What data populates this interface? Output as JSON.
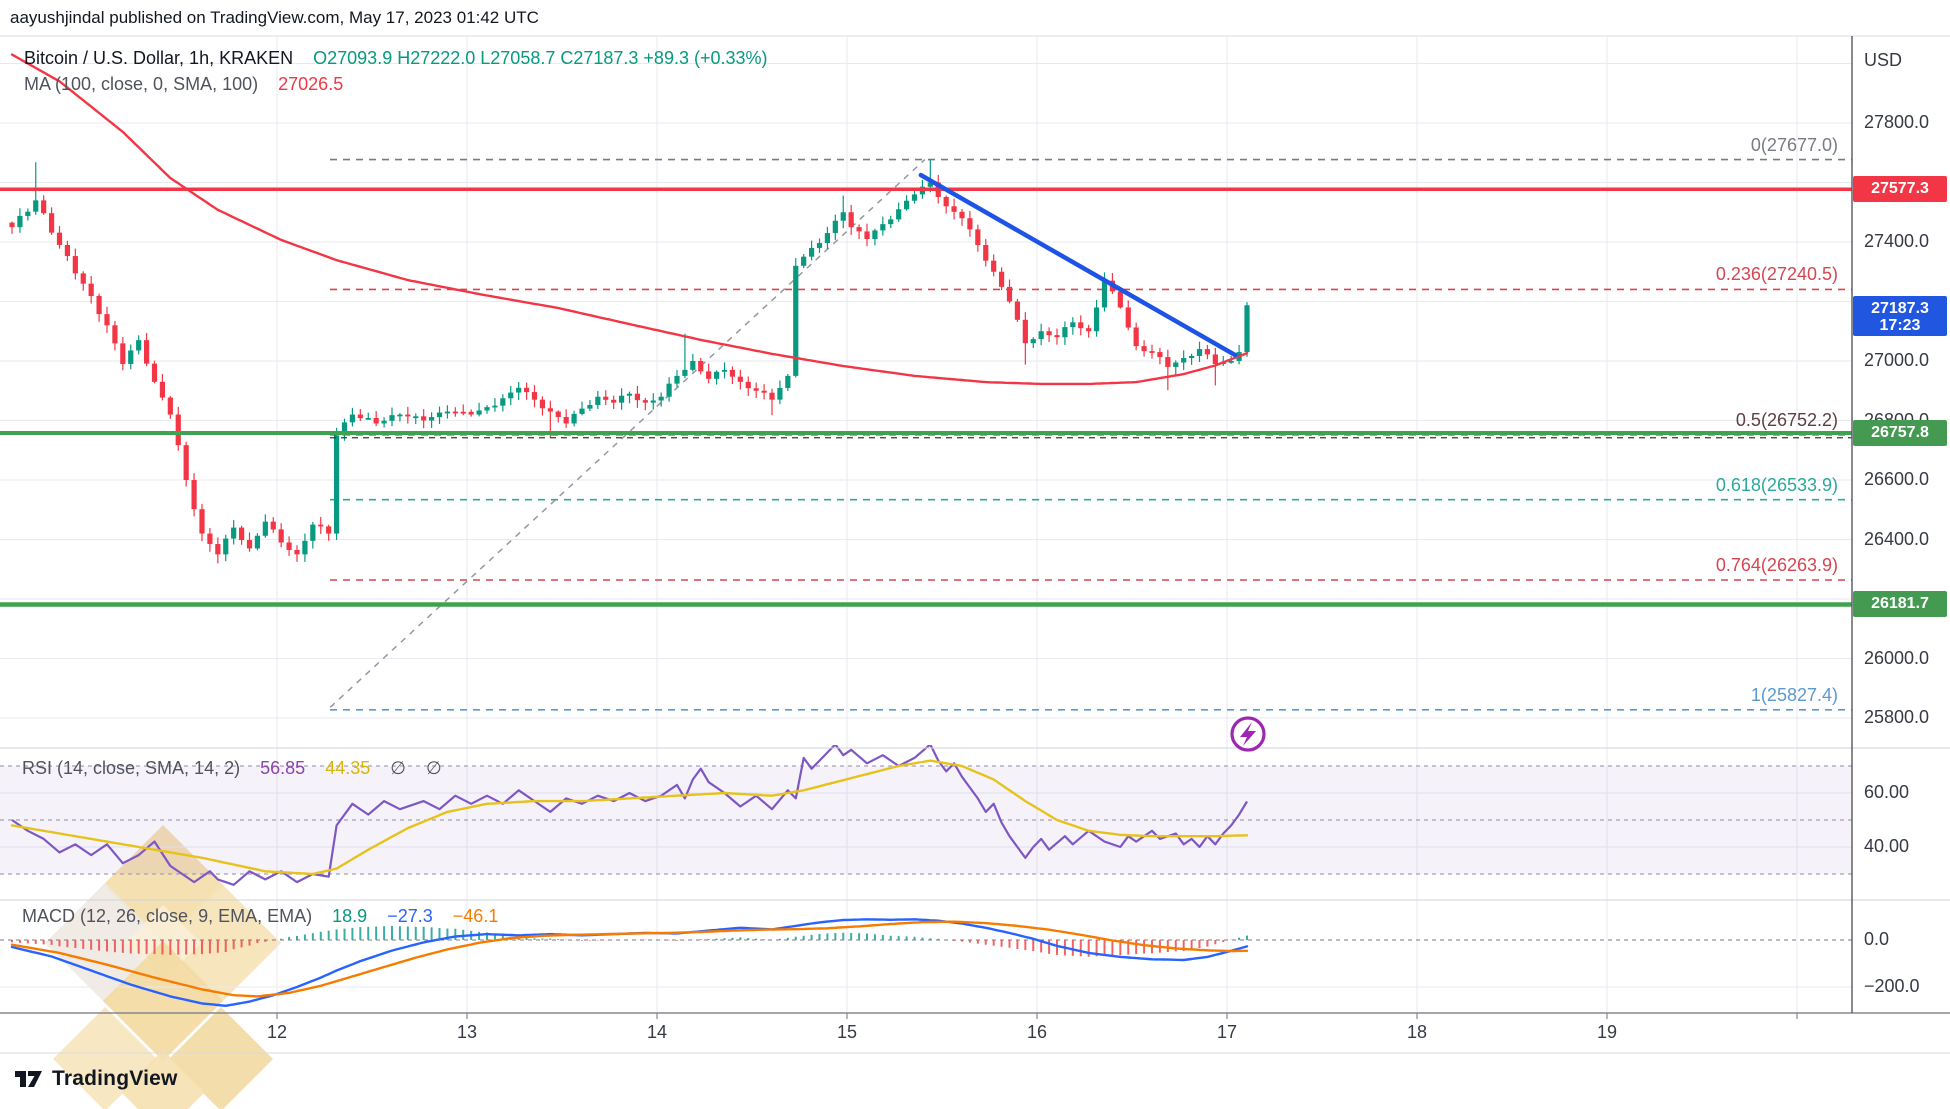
{
  "header": {
    "text": "aayushjindal published on TradingView.com, May 17, 2023 01:42 UTC"
  },
  "footer": {
    "brand": "TradingView"
  },
  "legend": {
    "symbol": "Bitcoin / U.S. Dollar, 1h, KRAKEN",
    "ohlc": "O27093.9  H27222.0  L27058.7  C27187.3  +89.3 (+0.33%)",
    "ma_label": "MA (100, close, 0, SMA, 100)",
    "ma_value": "27026.5"
  },
  "rsi_legend": {
    "label": "RSI (14, close, SMA, 14, 2)",
    "rsi_value": "56.85",
    "sma_value": "44.35",
    "empty1": "∅",
    "empty2": "∅"
  },
  "macd_legend": {
    "label": "MACD (12, 26, close, 9, EMA, EMA)",
    "hist_value": "18.9",
    "macd_value": "−27.3",
    "signal_value": "−46.1"
  },
  "price_axis": {
    "currency": "USD",
    "ticks": [
      27800,
      27400,
      27000,
      26800,
      26600,
      26400,
      26000,
      25800
    ]
  },
  "chart_data": {
    "type": "candlestick",
    "title": "Bitcoin / U.S. Dollar",
    "interval": "1h",
    "exchange": "KRAKEN",
    "ohlc": {
      "open": 27093.9,
      "high": 27222.0,
      "low": 27058.7,
      "close": 27187.3,
      "change": 89.3,
      "change_pct": 0.33
    },
    "x_axis": {
      "day_labels": [
        "12",
        "13",
        "14",
        "15",
        "16",
        "17",
        "18",
        "19"
      ]
    },
    "y_axis": {
      "ticks": [
        27800,
        27400,
        27000,
        26800,
        26600,
        26400,
        26000,
        25800
      ],
      "min": 25700,
      "max": 28100
    },
    "candles": {
      "up_color": "#089981",
      "down_color": "#f23645",
      "last_close": 27187.3,
      "countdown": "17:23",
      "anchors": [
        [
          0,
          27450
        ],
        [
          3,
          27540
        ],
        [
          6,
          27390
        ],
        [
          9,
          27260
        ],
        [
          12,
          27120
        ],
        [
          14,
          26990
        ],
        [
          16,
          27070
        ],
        [
          18,
          26930
        ],
        [
          20,
          26820
        ],
        [
          22,
          26600
        ],
        [
          24,
          26420
        ],
        [
          26,
          26350
        ],
        [
          28,
          26440
        ],
        [
          30,
          26370
        ],
        [
          32,
          26460
        ],
        [
          34,
          26390
        ],
        [
          36,
          26350
        ],
        [
          38,
          26450
        ],
        [
          40,
          26420
        ],
        [
          41,
          26750
        ],
        [
          43,
          26820
        ],
        [
          46,
          26790
        ],
        [
          49,
          26820
        ],
        [
          52,
          26800
        ],
        [
          55,
          26830
        ],
        [
          58,
          26820
        ],
        [
          61,
          26850
        ],
        [
          64,
          26910
        ],
        [
          66,
          26870
        ],
        [
          68,
          26830
        ],
        [
          70,
          26790
        ],
        [
          72,
          26840
        ],
        [
          74,
          26880
        ],
        [
          76,
          26860
        ],
        [
          78,
          26890
        ],
        [
          80,
          26860
        ],
        [
          82,
          26880
        ],
        [
          84,
          26950
        ],
        [
          86,
          27000
        ],
        [
          88,
          26940
        ],
        [
          90,
          26970
        ],
        [
          92,
          26930
        ],
        [
          94,
          26900
        ],
        [
          96,
          26870
        ],
        [
          98,
          26950
        ],
        [
          99,
          27320
        ],
        [
          101,
          27380
        ],
        [
          103,
          27430
        ],
        [
          105,
          27500
        ],
        [
          106,
          27450
        ],
        [
          108,
          27410
        ],
        [
          110,
          27460
        ],
        [
          112,
          27510
        ],
        [
          114,
          27560
        ],
        [
          116,
          27600
        ],
        [
          118,
          27520
        ],
        [
          120,
          27480
        ],
        [
          122,
          27390
        ],
        [
          124,
          27300
        ],
        [
          126,
          27200
        ],
        [
          128,
          27060
        ],
        [
          130,
          27100
        ],
        [
          132,
          27080
        ],
        [
          134,
          27130
        ],
        [
          136,
          27100
        ],
        [
          138,
          27270
        ],
        [
          140,
          27180
        ],
        [
          142,
          27050
        ],
        [
          144,
          27030
        ],
        [
          146,
          26980
        ],
        [
          148,
          27010
        ],
        [
          150,
          27040
        ],
        [
          152,
          26990
        ],
        [
          154,
          27000
        ],
        [
          155,
          27030
        ],
        [
          156,
          27187.3
        ]
      ],
      "wick_high": {
        "3": 27668,
        "85": 27092,
        "105": 27556,
        "116": 27677,
        "138": 27298
      },
      "wick_low": {
        "26": 26320,
        "36": 26325,
        "68": 26742,
        "96": 26818,
        "128": 26988,
        "146": 26902,
        "152": 26918
      }
    },
    "ma100": {
      "label": "MA (100, close, 0, SMA, 100)",
      "current": 27026.5,
      "color": "#f23645",
      "anchors": [
        [
          0,
          28030
        ],
        [
          6,
          27940
        ],
        [
          14,
          27770
        ],
        [
          20,
          27615
        ],
        [
          26,
          27508
        ],
        [
          34,
          27407
        ],
        [
          41,
          27339
        ],
        [
          50,
          27272
        ],
        [
          59,
          27225
        ],
        [
          69,
          27178
        ],
        [
          78,
          27124
        ],
        [
          87,
          27071
        ],
        [
          96,
          27024
        ],
        [
          105,
          26983
        ],
        [
          114,
          26950
        ],
        [
          123,
          26929
        ],
        [
          130,
          26923
        ],
        [
          136,
          26923
        ],
        [
          142,
          26929
        ],
        [
          148,
          26956
        ],
        [
          152,
          26985
        ],
        [
          156,
          27026.5
        ]
      ]
    },
    "h_lines": [
      {
        "price": 27577.3,
        "color": "#f23645",
        "width": 3.5
      },
      {
        "price": 26757.8,
        "color": "#3fa24f",
        "width": 4
      },
      {
        "price": 26181.7,
        "color": "#3fa24f",
        "width": 4.5
      }
    ],
    "tags": [
      {
        "text": "27577.3",
        "price": 27577.3,
        "color": "#f23645",
        "type": "resistance"
      },
      {
        "text": "27187.3",
        "price": 27187.3,
        "color": "#2157e0",
        "type": "last-price",
        "sub": "17:23"
      },
      {
        "text": "26757.8",
        "price": 26757.8,
        "color": "#459a52",
        "type": "support"
      },
      {
        "text": "26181.7",
        "price": 26181.7,
        "color": "#459a52",
        "type": "support"
      }
    ],
    "fib": [
      {
        "label": "0",
        "value": 27677.0,
        "color": "#787b86"
      },
      {
        "label": "0.236",
        "value": 27240.5,
        "color": "#d64550"
      },
      {
        "label": "0.5",
        "value": 26752.2,
        "color": "#5f4040"
      },
      {
        "label": "0.618",
        "value": 26533.9,
        "color": "#2ba99c"
      },
      {
        "label": "0.764",
        "value": 26263.9,
        "color": "#d64550"
      },
      {
        "label": "1",
        "value": 25827.4,
        "color": "#5b9ad0"
      }
    ],
    "trendline": {
      "h1": 114.8,
      "p1": 27625,
      "h2": 154.5,
      "p2": 27020,
      "color": "#1e53e5"
    },
    "diagonal": {
      "h1": 40.2,
      "p1": 25836,
      "h2": 115.3,
      "p2": 27677
    },
    "rsi": {
      "current": 56.85,
      "sma_current": 44.35,
      "band": [
        70,
        30
      ],
      "mid": 50,
      "ticks": [
        60,
        40
      ],
      "line_color": "#7e57c2",
      "sma_color": "#e8c21c",
      "series": [
        [
          0,
          50
        ],
        [
          2,
          46
        ],
        [
          4,
          43
        ],
        [
          6,
          38
        ],
        [
          8,
          41
        ],
        [
          10,
          37
        ],
        [
          12,
          41
        ],
        [
          14,
          34
        ],
        [
          16,
          37
        ],
        [
          18,
          42
        ],
        [
          20,
          33
        ],
        [
          23,
          27
        ],
        [
          25,
          31
        ],
        [
          26,
          28
        ],
        [
          28,
          26
        ],
        [
          30,
          31
        ],
        [
          32,
          28
        ],
        [
          34,
          31
        ],
        [
          36,
          27
        ],
        [
          38,
          30
        ],
        [
          40,
          29
        ],
        [
          41,
          48
        ],
        [
          43,
          56
        ],
        [
          45,
          52
        ],
        [
          47,
          57
        ],
        [
          49,
          54
        ],
        [
          52,
          57
        ],
        [
          54,
          54
        ],
        [
          56,
          59
        ],
        [
          58,
          56
        ],
        [
          60,
          59
        ],
        [
          62,
          56
        ],
        [
          64,
          61
        ],
        [
          66,
          57
        ],
        [
          68,
          53
        ],
        [
          70,
          58
        ],
        [
          72,
          56
        ],
        [
          74,
          59
        ],
        [
          76,
          57
        ],
        [
          78,
          60
        ],
        [
          80,
          57
        ],
        [
          82,
          59
        ],
        [
          84,
          63
        ],
        [
          85,
          58
        ],
        [
          86,
          65
        ],
        [
          87,
          69
        ],
        [
          88,
          64
        ],
        [
          90,
          60
        ],
        [
          92,
          55
        ],
        [
          94,
          59
        ],
        [
          96,
          54
        ],
        [
          98,
          61
        ],
        [
          99,
          58
        ],
        [
          100,
          73
        ],
        [
          101,
          69
        ],
        [
          102,
          72
        ],
        [
          104,
          78
        ],
        [
          105,
          74
        ],
        [
          106,
          76
        ],
        [
          108,
          71
        ],
        [
          110,
          74
        ],
        [
          112,
          70
        ],
        [
          114,
          73
        ],
        [
          116,
          78
        ],
        [
          117,
          72
        ],
        [
          118,
          68
        ],
        [
          119,
          71
        ],
        [
          120,
          66
        ],
        [
          121,
          62
        ],
        [
          122,
          58
        ],
        [
          123,
          53
        ],
        [
          124,
          56
        ],
        [
          125,
          49
        ],
        [
          126,
          44
        ],
        [
          127,
          40
        ],
        [
          128,
          36
        ],
        [
          129,
          40
        ],
        [
          130,
          43
        ],
        [
          131,
          39
        ],
        [
          133,
          44
        ],
        [
          134,
          41
        ],
        [
          136,
          46
        ],
        [
          138,
          42
        ],
        [
          140,
          40
        ],
        [
          141,
          44
        ],
        [
          142,
          42
        ],
        [
          144,
          46
        ],
        [
          145,
          43
        ],
        [
          147,
          45
        ],
        [
          148,
          41
        ],
        [
          149,
          43
        ],
        [
          150,
          40
        ],
        [
          151,
          44
        ],
        [
          152,
          41
        ],
        [
          153,
          45
        ],
        [
          154,
          48
        ],
        [
          155,
          52
        ],
        [
          156,
          56.85
        ]
      ],
      "sma_series": [
        [
          0,
          48
        ],
        [
          8,
          44
        ],
        [
          16,
          40
        ],
        [
          24,
          36
        ],
        [
          32,
          31
        ],
        [
          38,
          30
        ],
        [
          41,
          32
        ],
        [
          45,
          39
        ],
        [
          50,
          47
        ],
        [
          55,
          53
        ],
        [
          60,
          56
        ],
        [
          66,
          57
        ],
        [
          72,
          57
        ],
        [
          78,
          58
        ],
        [
          84,
          59
        ],
        [
          90,
          60
        ],
        [
          96,
          59
        ],
        [
          100,
          61
        ],
        [
          104,
          64
        ],
        [
          108,
          67
        ],
        [
          112,
          70
        ],
        [
          116,
          72
        ],
        [
          120,
          70
        ],
        [
          124,
          65
        ],
        [
          128,
          57
        ],
        [
          132,
          50
        ],
        [
          136,
          46
        ],
        [
          140,
          44.5
        ],
        [
          144,
          44
        ],
        [
          148,
          44
        ],
        [
          152,
          44
        ],
        [
          156,
          44.35
        ]
      ]
    },
    "macd": {
      "hist_current": 18.9,
      "macd_current": -27.3,
      "signal_current": -46.1,
      "ticks": [
        0,
        -200
      ],
      "macd_color": "#2962ff",
      "signal_color": "#f57c00",
      "hist_up_color": "#26a69a",
      "hist_down_color": "#ef5350",
      "macd_series": [
        [
          0,
          -30
        ],
        [
          5,
          -70
        ],
        [
          10,
          -130
        ],
        [
          15,
          -190
        ],
        [
          20,
          -240
        ],
        [
          24,
          -270
        ],
        [
          27,
          -280
        ],
        [
          30,
          -262
        ],
        [
          33,
          -235
        ],
        [
          36,
          -200
        ],
        [
          39,
          -160
        ],
        [
          41,
          -130
        ],
        [
          44,
          -90
        ],
        [
          48,
          -45
        ],
        [
          52,
          -10
        ],
        [
          56,
          15
        ],
        [
          60,
          25
        ],
        [
          64,
          20
        ],
        [
          68,
          25
        ],
        [
          72,
          20
        ],
        [
          76,
          25
        ],
        [
          80,
          30
        ],
        [
          84,
          28
        ],
        [
          88,
          40
        ],
        [
          92,
          52
        ],
        [
          96,
          45
        ],
        [
          99,
          60
        ],
        [
          102,
          75
        ],
        [
          105,
          85
        ],
        [
          108,
          88
        ],
        [
          111,
          86
        ],
        [
          114,
          88
        ],
        [
          117,
          82
        ],
        [
          120,
          70
        ],
        [
          123,
          52
        ],
        [
          126,
          30
        ],
        [
          129,
          5
        ],
        [
          132,
          -25
        ],
        [
          136,
          -55
        ],
        [
          140,
          -72
        ],
        [
          144,
          -82
        ],
        [
          148,
          -85
        ],
        [
          151,
          -72
        ],
        [
          153,
          -55
        ],
        [
          156,
          -27.3
        ]
      ],
      "signal_series": [
        [
          0,
          -20
        ],
        [
          6,
          -55
        ],
        [
          12,
          -105
        ],
        [
          18,
          -160
        ],
        [
          24,
          -210
        ],
        [
          28,
          -235
        ],
        [
          31,
          -240
        ],
        [
          35,
          -225
        ],
        [
          39,
          -195
        ],
        [
          43,
          -155
        ],
        [
          47,
          -115
        ],
        [
          51,
          -75
        ],
        [
          55,
          -40
        ],
        [
          59,
          -12
        ],
        [
          63,
          8
        ],
        [
          67,
          18
        ],
        [
          71,
          22
        ],
        [
          75,
          25
        ],
        [
          79,
          28
        ],
        [
          83,
          30
        ],
        [
          87,
          34
        ],
        [
          91,
          40
        ],
        [
          95,
          44
        ],
        [
          99,
          46
        ],
        [
          103,
          50
        ],
        [
          107,
          58
        ],
        [
          111,
          68
        ],
        [
          115,
          76
        ],
        [
          119,
          78
        ],
        [
          123,
          72
        ],
        [
          127,
          60
        ],
        [
          131,
          44
        ],
        [
          135,
          22
        ],
        [
          139,
          -2
        ],
        [
          143,
          -22
        ],
        [
          147,
          -36
        ],
        [
          151,
          -44
        ],
        [
          154,
          -47
        ],
        [
          156,
          -46.1
        ]
      ]
    },
    "marker": {
      "type": "lightning",
      "color": "#9c27b0"
    }
  }
}
